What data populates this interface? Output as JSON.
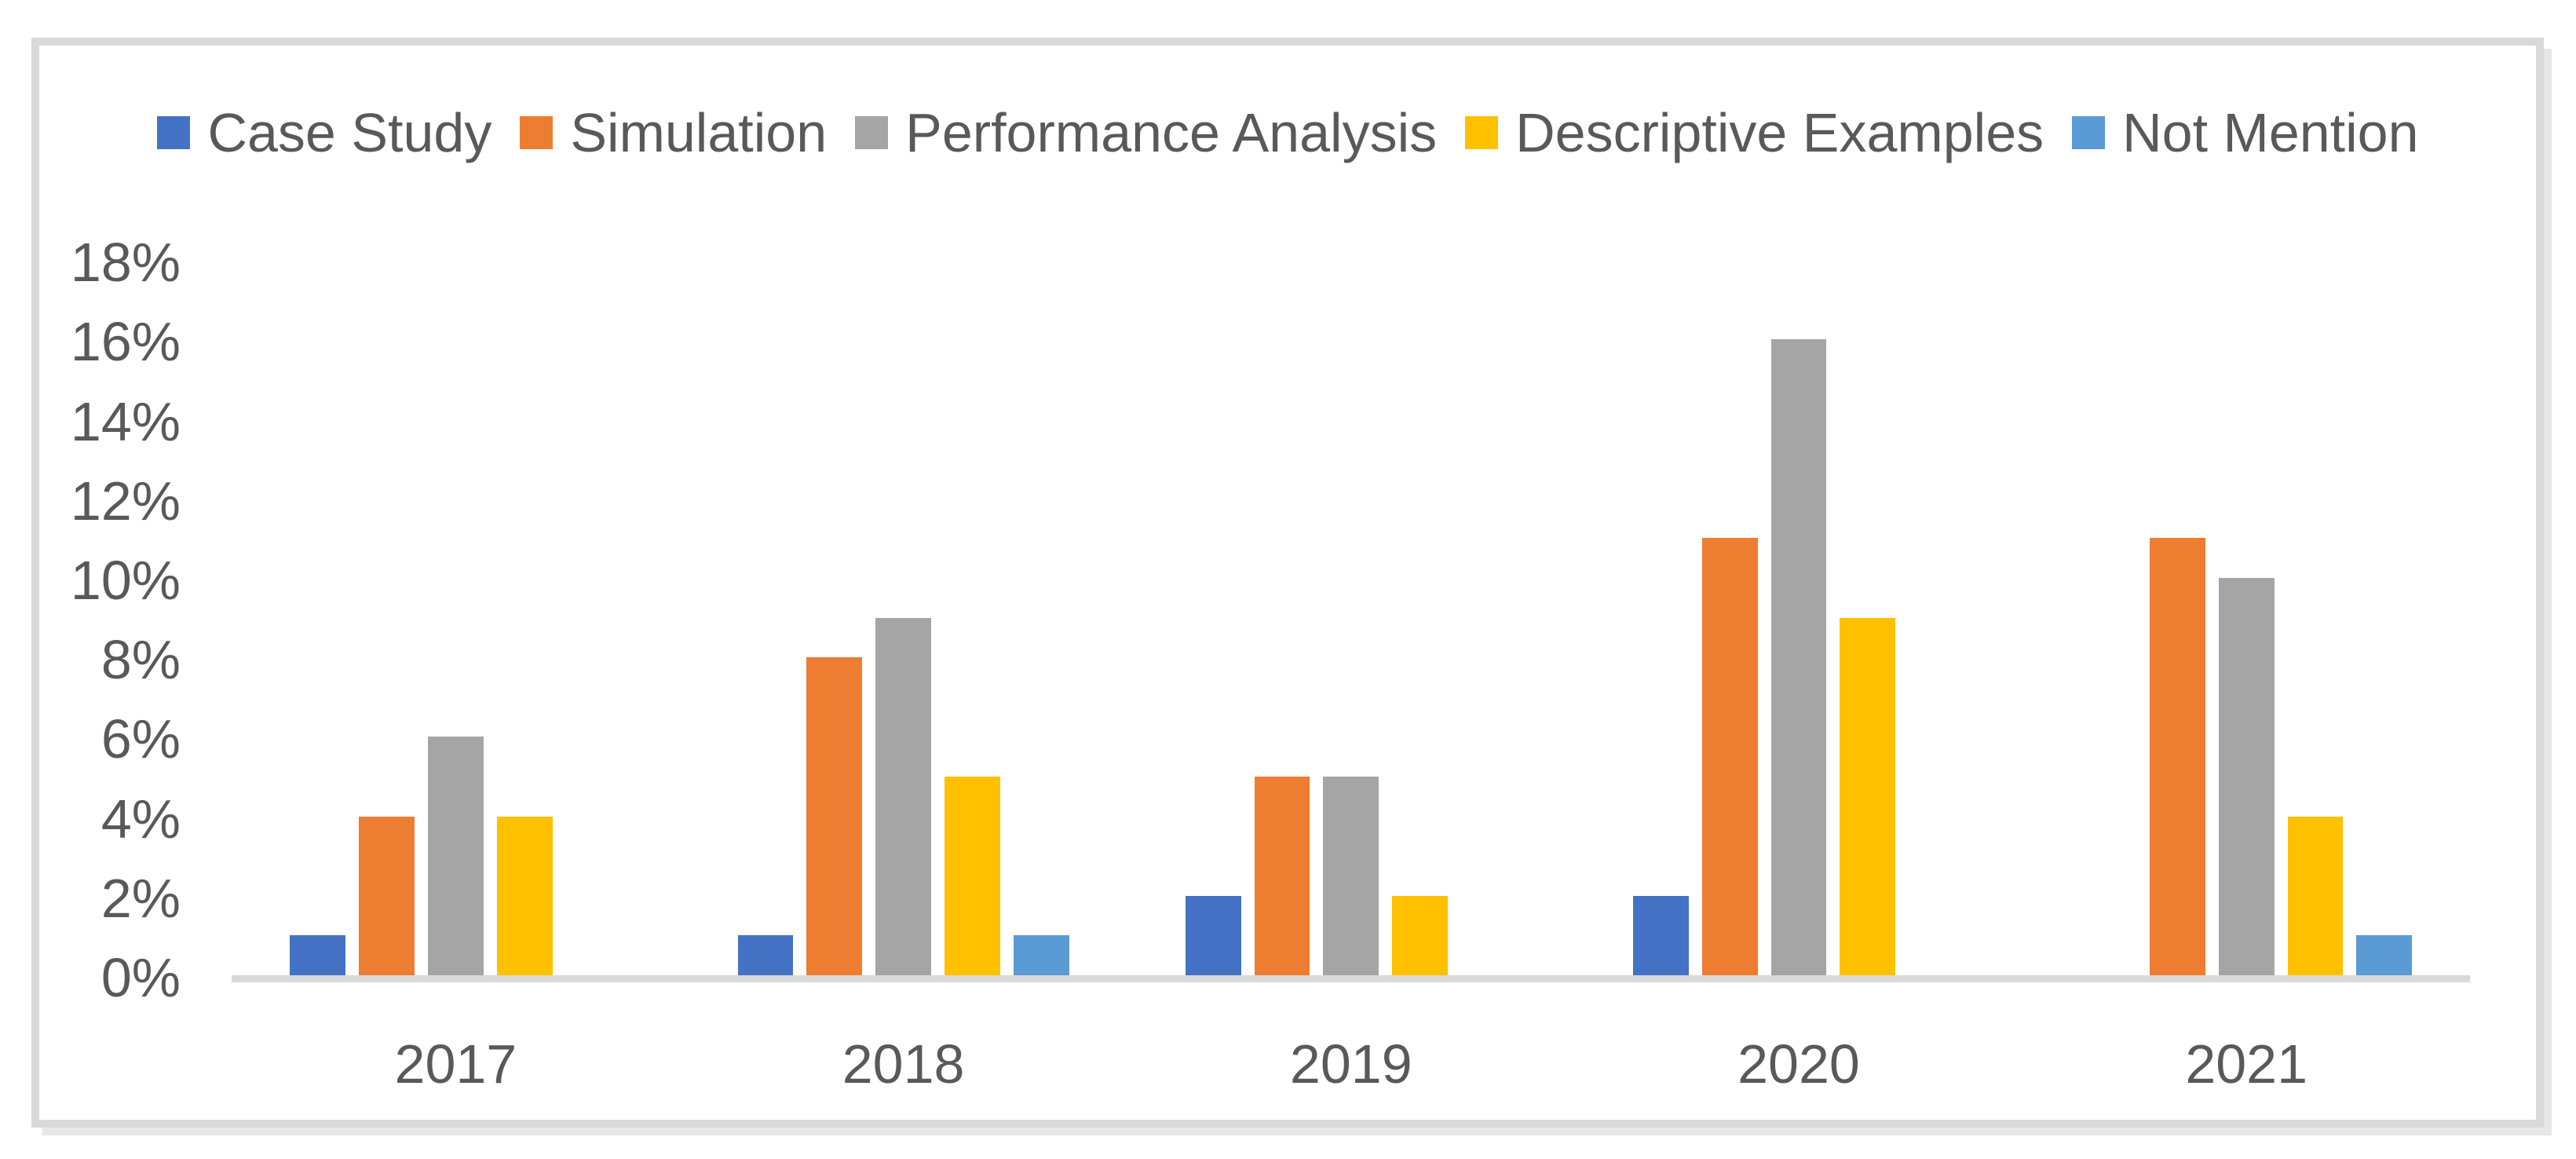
{
  "chart_data": {
    "type": "bar",
    "title": "",
    "categories": [
      "2017",
      "2018",
      "2019",
      "2020",
      "2021"
    ],
    "series": [
      {
        "name": "Case Study",
        "color": "#4472C4",
        "values": [
          1,
          1,
          2,
          2,
          0
        ]
      },
      {
        "name": "Simulation",
        "color": "#ED7D31",
        "values": [
          4,
          8,
          5,
          11,
          11
        ]
      },
      {
        "name": "Performance Analysis",
        "color": "#A5A5A5",
        "values": [
          6,
          9,
          5,
          16,
          10
        ]
      },
      {
        "name": "Descriptive Examples",
        "color": "#FFC000",
        "values": [
          4,
          5,
          2,
          9,
          4
        ]
      },
      {
        "name": "Not Mention",
        "color": "#5B9BD5",
        "values": [
          0,
          1,
          0,
          0,
          1
        ]
      }
    ],
    "y_ticks": [
      "18%",
      "16%",
      "14%",
      "12%",
      "10%",
      "8%",
      "6%",
      "4%",
      "2%",
      "0%"
    ],
    "ylim": [
      0,
      18
    ],
    "y_step": 2,
    "unit": "%",
    "legend_position": "top",
    "grid": false
  },
  "colors": {
    "axis_line": "#d9d9d9",
    "frame_border": "#d9d9d9",
    "label_text": "#595959",
    "background": "#ffffff"
  }
}
